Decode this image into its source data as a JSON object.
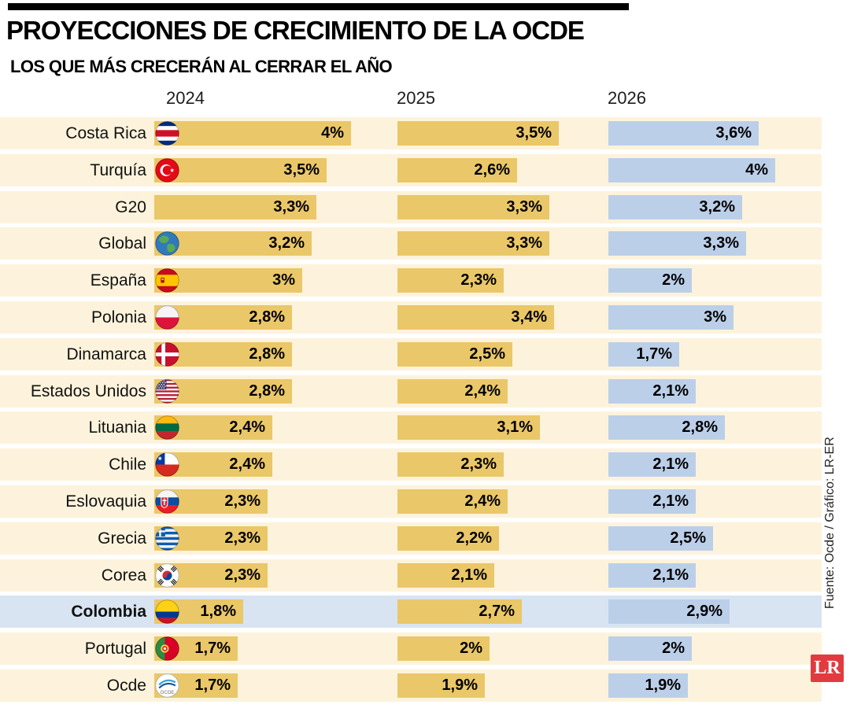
{
  "header": {
    "title": "PROYECCIONES DE CRECIMIENTO DE LA OCDE",
    "subtitle": "LOS QUE MÁS CRECERÁN AL CERRAR EL AÑO"
  },
  "columns": [
    "2024",
    "2025",
    "2026"
  ],
  "rows": [
    {
      "name": "Costa Rica",
      "flag": "costa-rica",
      "values": [
        4,
        3.5,
        3.6
      ],
      "labels": [
        "4%",
        "3,5%",
        "3,6%"
      ],
      "highlight": false
    },
    {
      "name": "Turquía",
      "flag": "turkey",
      "values": [
        3.5,
        2.6,
        4
      ],
      "labels": [
        "3,5%",
        "2,6%",
        "4%"
      ],
      "highlight": false
    },
    {
      "name": "G20",
      "flag": null,
      "values": [
        3.3,
        3.3,
        3.2
      ],
      "labels": [
        "3,3%",
        "3,3%",
        "3,2%"
      ],
      "highlight": false
    },
    {
      "name": "Global",
      "flag": "globe",
      "values": [
        3.2,
        3.3,
        3.3
      ],
      "labels": [
        "3,2%",
        "3,3%",
        "3,3%"
      ],
      "highlight": false
    },
    {
      "name": "España",
      "flag": "spain",
      "values": [
        3,
        2.3,
        2
      ],
      "labels": [
        "3%",
        "2,3%",
        "2%"
      ],
      "highlight": false
    },
    {
      "name": "Polonia",
      "flag": "poland",
      "values": [
        2.8,
        3.4,
        3
      ],
      "labels": [
        "2,8%",
        "3,4%",
        "3%"
      ],
      "highlight": false
    },
    {
      "name": "Dinamarca",
      "flag": "denmark",
      "values": [
        2.8,
        2.5,
        1.7
      ],
      "labels": [
        "2,8%",
        "2,5%",
        "1,7%"
      ],
      "highlight": false
    },
    {
      "name": "Estados Unidos",
      "flag": "usa",
      "values": [
        2.8,
        2.4,
        2.1
      ],
      "labels": [
        "2,8%",
        "2,4%",
        "2,1%"
      ],
      "highlight": false
    },
    {
      "name": "Lituania",
      "flag": "lithuania",
      "values": [
        2.4,
        3.1,
        2.8
      ],
      "labels": [
        "2,4%",
        "3,1%",
        "2,8%"
      ],
      "highlight": false
    },
    {
      "name": "Chile",
      "flag": "chile",
      "values": [
        2.4,
        2.3,
        2.1
      ],
      "labels": [
        "2,4%",
        "2,3%",
        "2,1%"
      ],
      "highlight": false
    },
    {
      "name": "Eslovaquia",
      "flag": "slovakia",
      "values": [
        2.3,
        2.4,
        2.1
      ],
      "labels": [
        "2,3%",
        "2,4%",
        "2,1%"
      ],
      "highlight": false
    },
    {
      "name": "Grecia",
      "flag": "greece",
      "values": [
        2.3,
        2.2,
        2.5
      ],
      "labels": [
        "2,3%",
        "2,2%",
        "2,5%"
      ],
      "highlight": false
    },
    {
      "name": "Corea",
      "flag": "south-korea",
      "values": [
        2.3,
        2.1,
        2.1
      ],
      "labels": [
        "2,3%",
        "2,1%",
        "2,1%"
      ],
      "highlight": false
    },
    {
      "name": "Colombia",
      "flag": "colombia",
      "values": [
        1.8,
        2.7,
        2.9
      ],
      "labels": [
        "1,8%",
        "2,7%",
        "2,9%"
      ],
      "highlight": true
    },
    {
      "name": "Portugal",
      "flag": "portugal",
      "values": [
        1.7,
        2,
        2
      ],
      "labels": [
        "1,7%",
        "2%",
        "2%"
      ],
      "highlight": false
    },
    {
      "name": "Ocde",
      "flag": "ocde",
      "values": [
        1.7,
        1.9,
        1.9
      ],
      "labels": [
        "1,7%",
        "1,9%",
        "1,9%"
      ],
      "highlight": false
    }
  ],
  "footer": {
    "source": "Fuente: Ocde / Gráfico: LR-ER",
    "logo": "LR"
  },
  "colors": {
    "gold": "#eac768",
    "blue": "#bccfe9",
    "band": "#fdf3dc",
    "highlight_band": "#d9e4f2",
    "logo_red": "#e23b3f"
  },
  "chart_data": {
    "type": "bar",
    "orientation": "horizontal",
    "title": "PROYECCIONES DE CRECIMIENTO DE LA OCDE",
    "subtitle": "LOS QUE MÁS CRECERÁN AL CERRAR EL AÑO",
    "categories": [
      "Costa Rica",
      "Turquía",
      "G20",
      "Global",
      "España",
      "Polonia",
      "Dinamarca",
      "Estados Unidos",
      "Lituania",
      "Chile",
      "Eslovaquia",
      "Grecia",
      "Corea",
      "Colombia",
      "Portugal",
      "Ocde"
    ],
    "series": [
      {
        "name": "2024",
        "values": [
          4,
          3.5,
          3.3,
          3.2,
          3,
          2.8,
          2.8,
          2.8,
          2.4,
          2.4,
          2.3,
          2.3,
          2.3,
          1.8,
          1.7,
          1.7
        ]
      },
      {
        "name": "2025",
        "values": [
          3.5,
          2.6,
          3.3,
          3.3,
          2.3,
          3.4,
          2.5,
          2.4,
          3.1,
          2.3,
          2.4,
          2.2,
          2.1,
          2.7,
          2,
          1.9
        ]
      },
      {
        "name": "2026",
        "values": [
          3.6,
          4,
          3.2,
          3.3,
          2,
          3,
          1.7,
          2.1,
          2.8,
          2.1,
          2.1,
          2.5,
          2.1,
          2.9,
          2,
          1.9
        ]
      }
    ],
    "unit": "%",
    "value_labels": true,
    "grid": false,
    "legend_position": "column-headers",
    "highlighted_category": "Colombia",
    "source": "Fuente: Ocde / Gráfico: LR-ER"
  }
}
